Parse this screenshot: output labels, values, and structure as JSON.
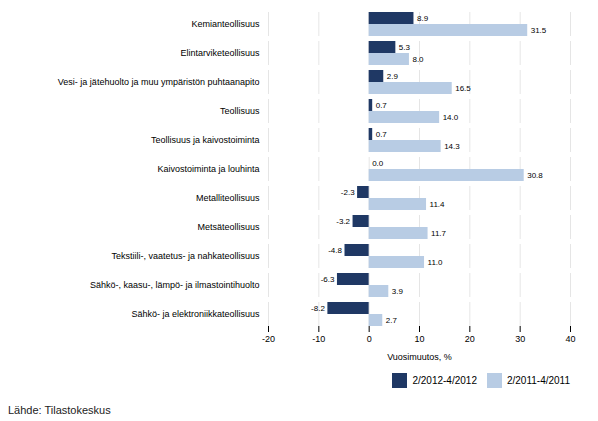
{
  "chart_data": {
    "type": "bar",
    "orientation": "horizontal",
    "categories": [
      "Sähkö- ja elektroniikkateollisuus",
      "Sähkö-, kaasu-, lämpö- ja ilmastointihuolto",
      "Tekstiili-, vaatetus- ja nahkateollisuus",
      "Metsäteollisuus",
      "Metalliteollisuus",
      "Kaivostoiminta ja louhinta",
      "Teollisuus ja kaivostoiminta",
      "Teollisuus",
      "Vesi- ja jätehuolto ja muu ympäristön puhtaanapito",
      "Elintarviketeollisuus",
      "Kemianteollisuus"
    ],
    "series": [
      {
        "name": "2/2012-4/2012",
        "color": "#1f3864",
        "values": [
          -8.2,
          -6.3,
          -4.8,
          -3.2,
          -2.3,
          0.0,
          0.7,
          0.7,
          2.9,
          5.3,
          8.9
        ],
        "value_labels": [
          "-8.2",
          "-6.3",
          "-4.8",
          "-3.2",
          "-2.3",
          "0.0",
          "0.7",
          "0.7",
          "2.9",
          "5.3",
          "8.9"
        ]
      },
      {
        "name": "2/2011-4/2011",
        "color": "#b8cce4",
        "values": [
          2.7,
          3.9,
          11.0,
          11.7,
          11.4,
          30.8,
          14.3,
          14.0,
          16.5,
          8.0,
          31.5
        ],
        "value_labels": [
          "2.7",
          "3.9",
          "11.0",
          "11.7",
          "11.4",
          "30.8",
          "14.3",
          "14.0",
          "16.5",
          "8.0",
          "31.5"
        ]
      }
    ],
    "xlabel": "Vuosimuutos, %",
    "xlim": [
      -20,
      40
    ],
    "xticks": [
      -20,
      -10,
      0,
      10,
      20,
      30,
      40
    ],
    "grid": true,
    "legend": "lower right",
    "data_labels": true,
    "source": "Lähde: Tilastokeskus"
  }
}
